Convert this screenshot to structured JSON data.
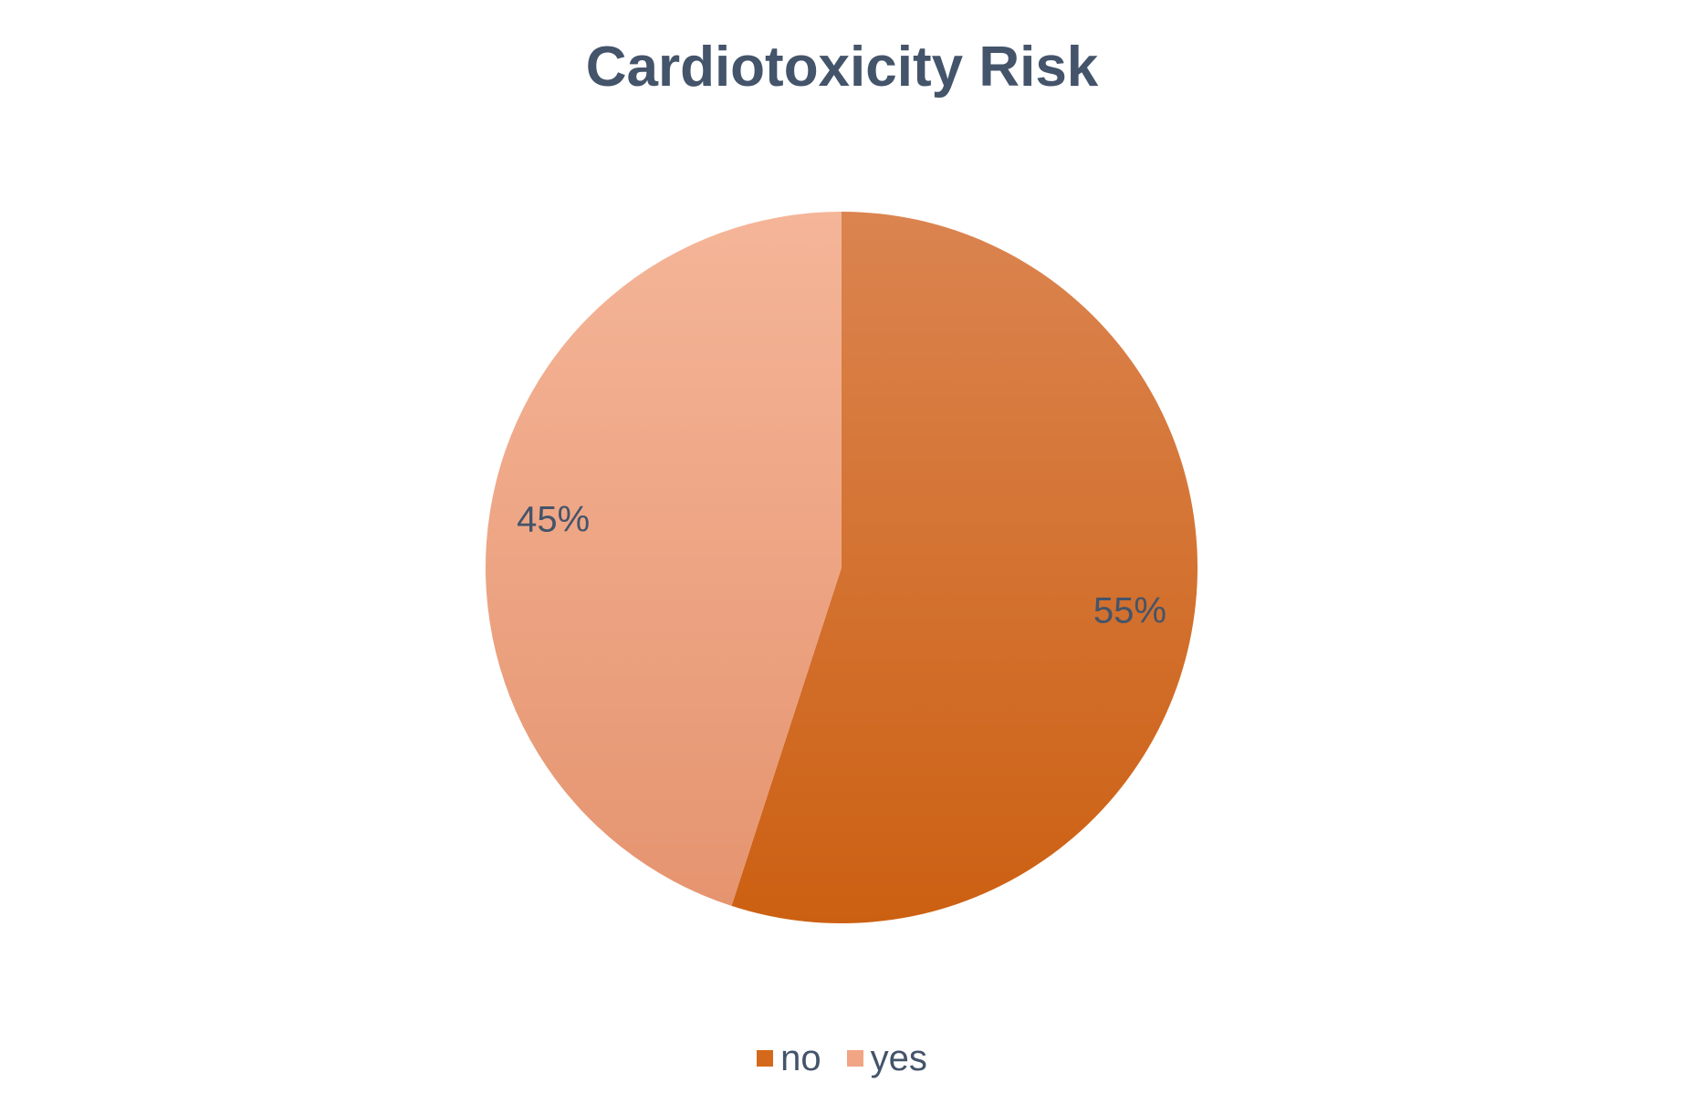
{
  "chart_data": {
    "type": "pie",
    "title": "Cardiotoxicity Risk",
    "categories": [
      "no",
      "yes"
    ],
    "values": [
      55,
      45
    ],
    "data_labels": [
      "55%",
      "45%"
    ],
    "colors": [
      "#d4691b",
      "#f2a585"
    ],
    "legend_placement": "bottom"
  }
}
